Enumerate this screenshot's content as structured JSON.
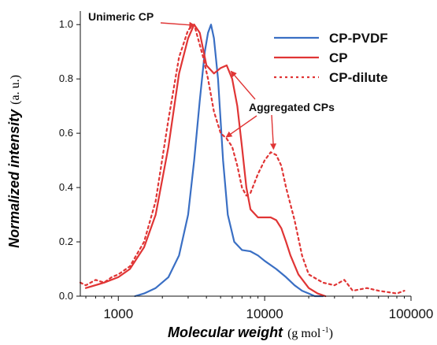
{
  "chart_data": {
    "type": "line",
    "xlabel": "Molecular weight",
    "xlabel_unit": "(g mol",
    "xlabel_unit_sup": "-1",
    "xlabel_unit_close": ")",
    "ylabel": "Normalized intensity",
    "ylabel_unit": "(a. u.)",
    "x_scale": "log",
    "xlim": [
      550,
      100000
    ],
    "ylim": [
      0,
      1.05
    ],
    "x_ticks": [
      1000,
      10000,
      100000
    ],
    "x_tick_labels": [
      "1000",
      "10000",
      "100000"
    ],
    "y_ticks": [
      0.0,
      0.2,
      0.4,
      0.6,
      0.8,
      1.0
    ],
    "y_tick_labels": [
      "0.0",
      "0.2",
      "0.4",
      "0.6",
      "0.8",
      "1.0"
    ],
    "grid": false,
    "legend_position": "top-right",
    "series": [
      {
        "name": "CP-PVDF",
        "color": "#3a6fc4",
        "style": "solid",
        "x": [
          1300,
          1500,
          1800,
          2200,
          2600,
          3000,
          3300,
          3600,
          3900,
          4100,
          4300,
          4500,
          4800,
          5200,
          5600,
          6200,
          7000,
          8000,
          9000,
          10000,
          12000,
          14000,
          16000,
          18000,
          20000,
          22000,
          25000
        ],
        "y": [
          0.0,
          0.01,
          0.03,
          0.07,
          0.15,
          0.3,
          0.5,
          0.72,
          0.9,
          0.97,
          1.0,
          0.95,
          0.8,
          0.5,
          0.3,
          0.2,
          0.17,
          0.165,
          0.15,
          0.13,
          0.1,
          0.07,
          0.04,
          0.02,
          0.01,
          0.0,
          0.0
        ]
      },
      {
        "name": "CP",
        "color": "#e03535",
        "style": "solid",
        "x": [
          600,
          800,
          1000,
          1200,
          1500,
          1800,
          2200,
          2600,
          3000,
          3300,
          3600,
          4000,
          4500,
          5000,
          5500,
          6000,
          6500,
          7000,
          7500,
          8000,
          9000,
          10000,
          11000,
          12000,
          13000,
          14000,
          15000,
          17000,
          20000,
          23000,
          26000
        ],
        "y": [
          0.03,
          0.05,
          0.07,
          0.1,
          0.18,
          0.3,
          0.55,
          0.82,
          0.95,
          1.0,
          0.97,
          0.85,
          0.82,
          0.84,
          0.85,
          0.8,
          0.7,
          0.55,
          0.4,
          0.32,
          0.29,
          0.29,
          0.29,
          0.28,
          0.25,
          0.2,
          0.15,
          0.08,
          0.03,
          0.01,
          0.0
        ]
      },
      {
        "name": "CP-dilute",
        "color": "#e03535",
        "style": "dotted",
        "x": [
          550,
          600,
          700,
          800,
          900,
          1000,
          1200,
          1500,
          1800,
          2200,
          2600,
          3000,
          3300,
          3500,
          3800,
          4100,
          4500,
          5000,
          5500,
          6000,
          6500,
          7000,
          7500,
          8000,
          9000,
          10000,
          11000,
          12000,
          13000,
          14000,
          16000,
          18000,
          20000,
          25000,
          30000,
          35000,
          40000,
          50000,
          60000,
          80000,
          90000
        ],
        "y": [
          0.05,
          0.04,
          0.06,
          0.05,
          0.07,
          0.08,
          0.11,
          0.2,
          0.35,
          0.65,
          0.88,
          0.98,
          1.0,
          0.95,
          0.88,
          0.8,
          0.68,
          0.6,
          0.58,
          0.55,
          0.48,
          0.4,
          0.37,
          0.38,
          0.45,
          0.5,
          0.53,
          0.52,
          0.48,
          0.4,
          0.28,
          0.15,
          0.08,
          0.05,
          0.04,
          0.06,
          0.02,
          0.03,
          0.02,
          0.01,
          0.02
        ]
      }
    ],
    "annotations": [
      {
        "text": "Unimeric CP",
        "arrow_to_x": 3500,
        "arrow_to_y": 1.0
      },
      {
        "text": "Aggregated CPs",
        "arrows_to": [
          {
            "x": 5600,
            "y": 0.84
          },
          {
            "x": 5200,
            "y": 0.58
          },
          {
            "x": 11500,
            "y": 0.53
          }
        ]
      }
    ]
  }
}
